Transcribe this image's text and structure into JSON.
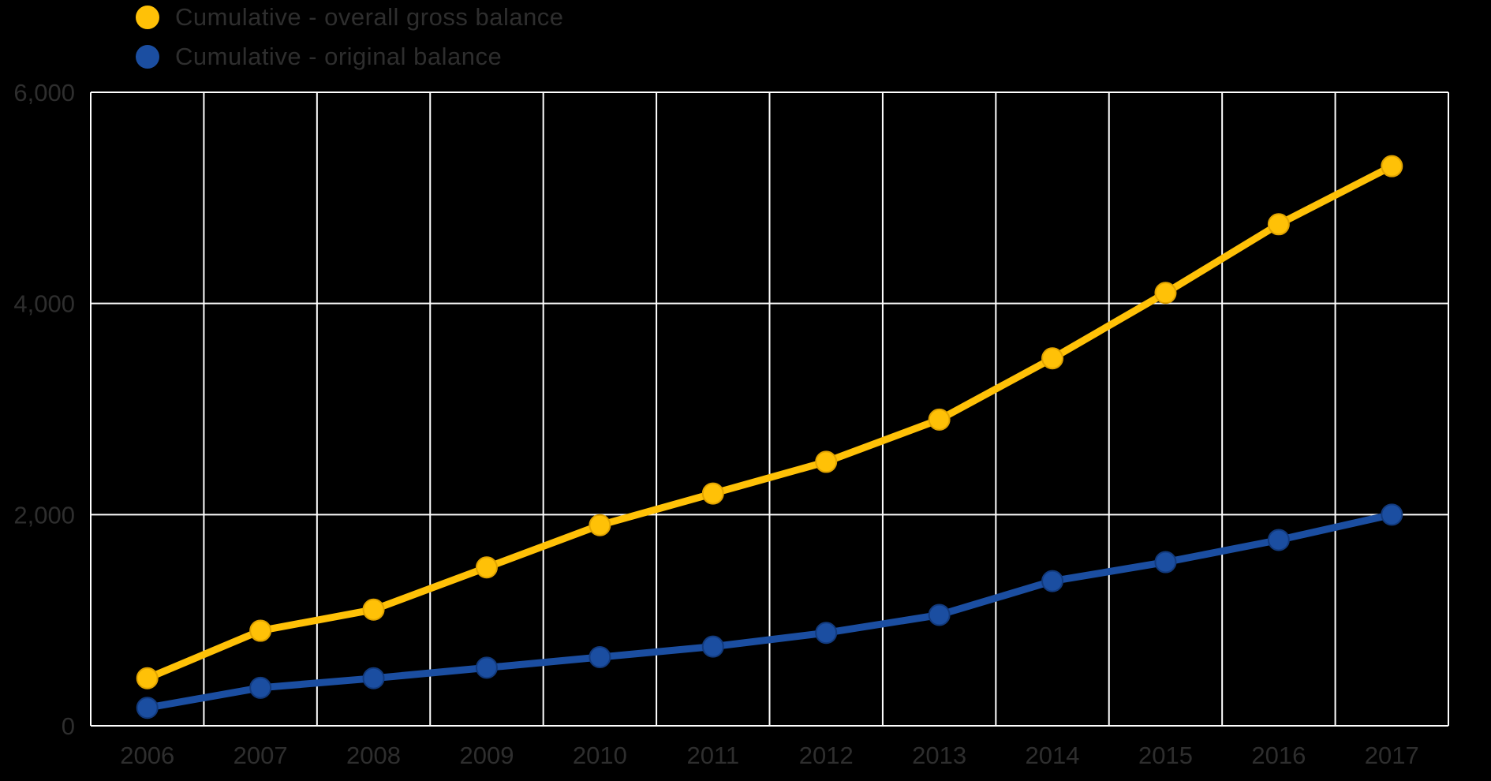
{
  "colors": {
    "background": "#000000",
    "grid": "#ffffff",
    "text": "#2e2e2e"
  },
  "chart_data": {
    "type": "line",
    "x": [
      "2006",
      "2007",
      "2008",
      "2009",
      "2010",
      "2011",
      "2012",
      "2013",
      "2014",
      "2015",
      "2016",
      "2017"
    ],
    "series": [
      {
        "name": "Cumulative - overall gross balance",
        "color": "#FFC107",
        "marker_edge": "#E2A400",
        "values": [
          450,
          900,
          1100,
          1500,
          1900,
          2200,
          2500,
          2900,
          3480,
          4100,
          4750,
          5300
        ]
      },
      {
        "name": "Cumulative - original balance",
        "color": "#1B4EA1",
        "marker_edge": "#123A7D",
        "values": [
          170,
          360,
          450,
          550,
          650,
          750,
          880,
          1050,
          1370,
          1550,
          1760,
          2000
        ]
      }
    ],
    "title": "",
    "xlabel": "",
    "ylabel": "",
    "ylim": [
      0,
      6000
    ],
    "yticks": [
      0,
      2000,
      4000,
      6000
    ],
    "ytick_labels": [
      "0",
      "2,000",
      "4,000",
      "6,000"
    ],
    "grid": true,
    "legend_position": "top-left"
  }
}
